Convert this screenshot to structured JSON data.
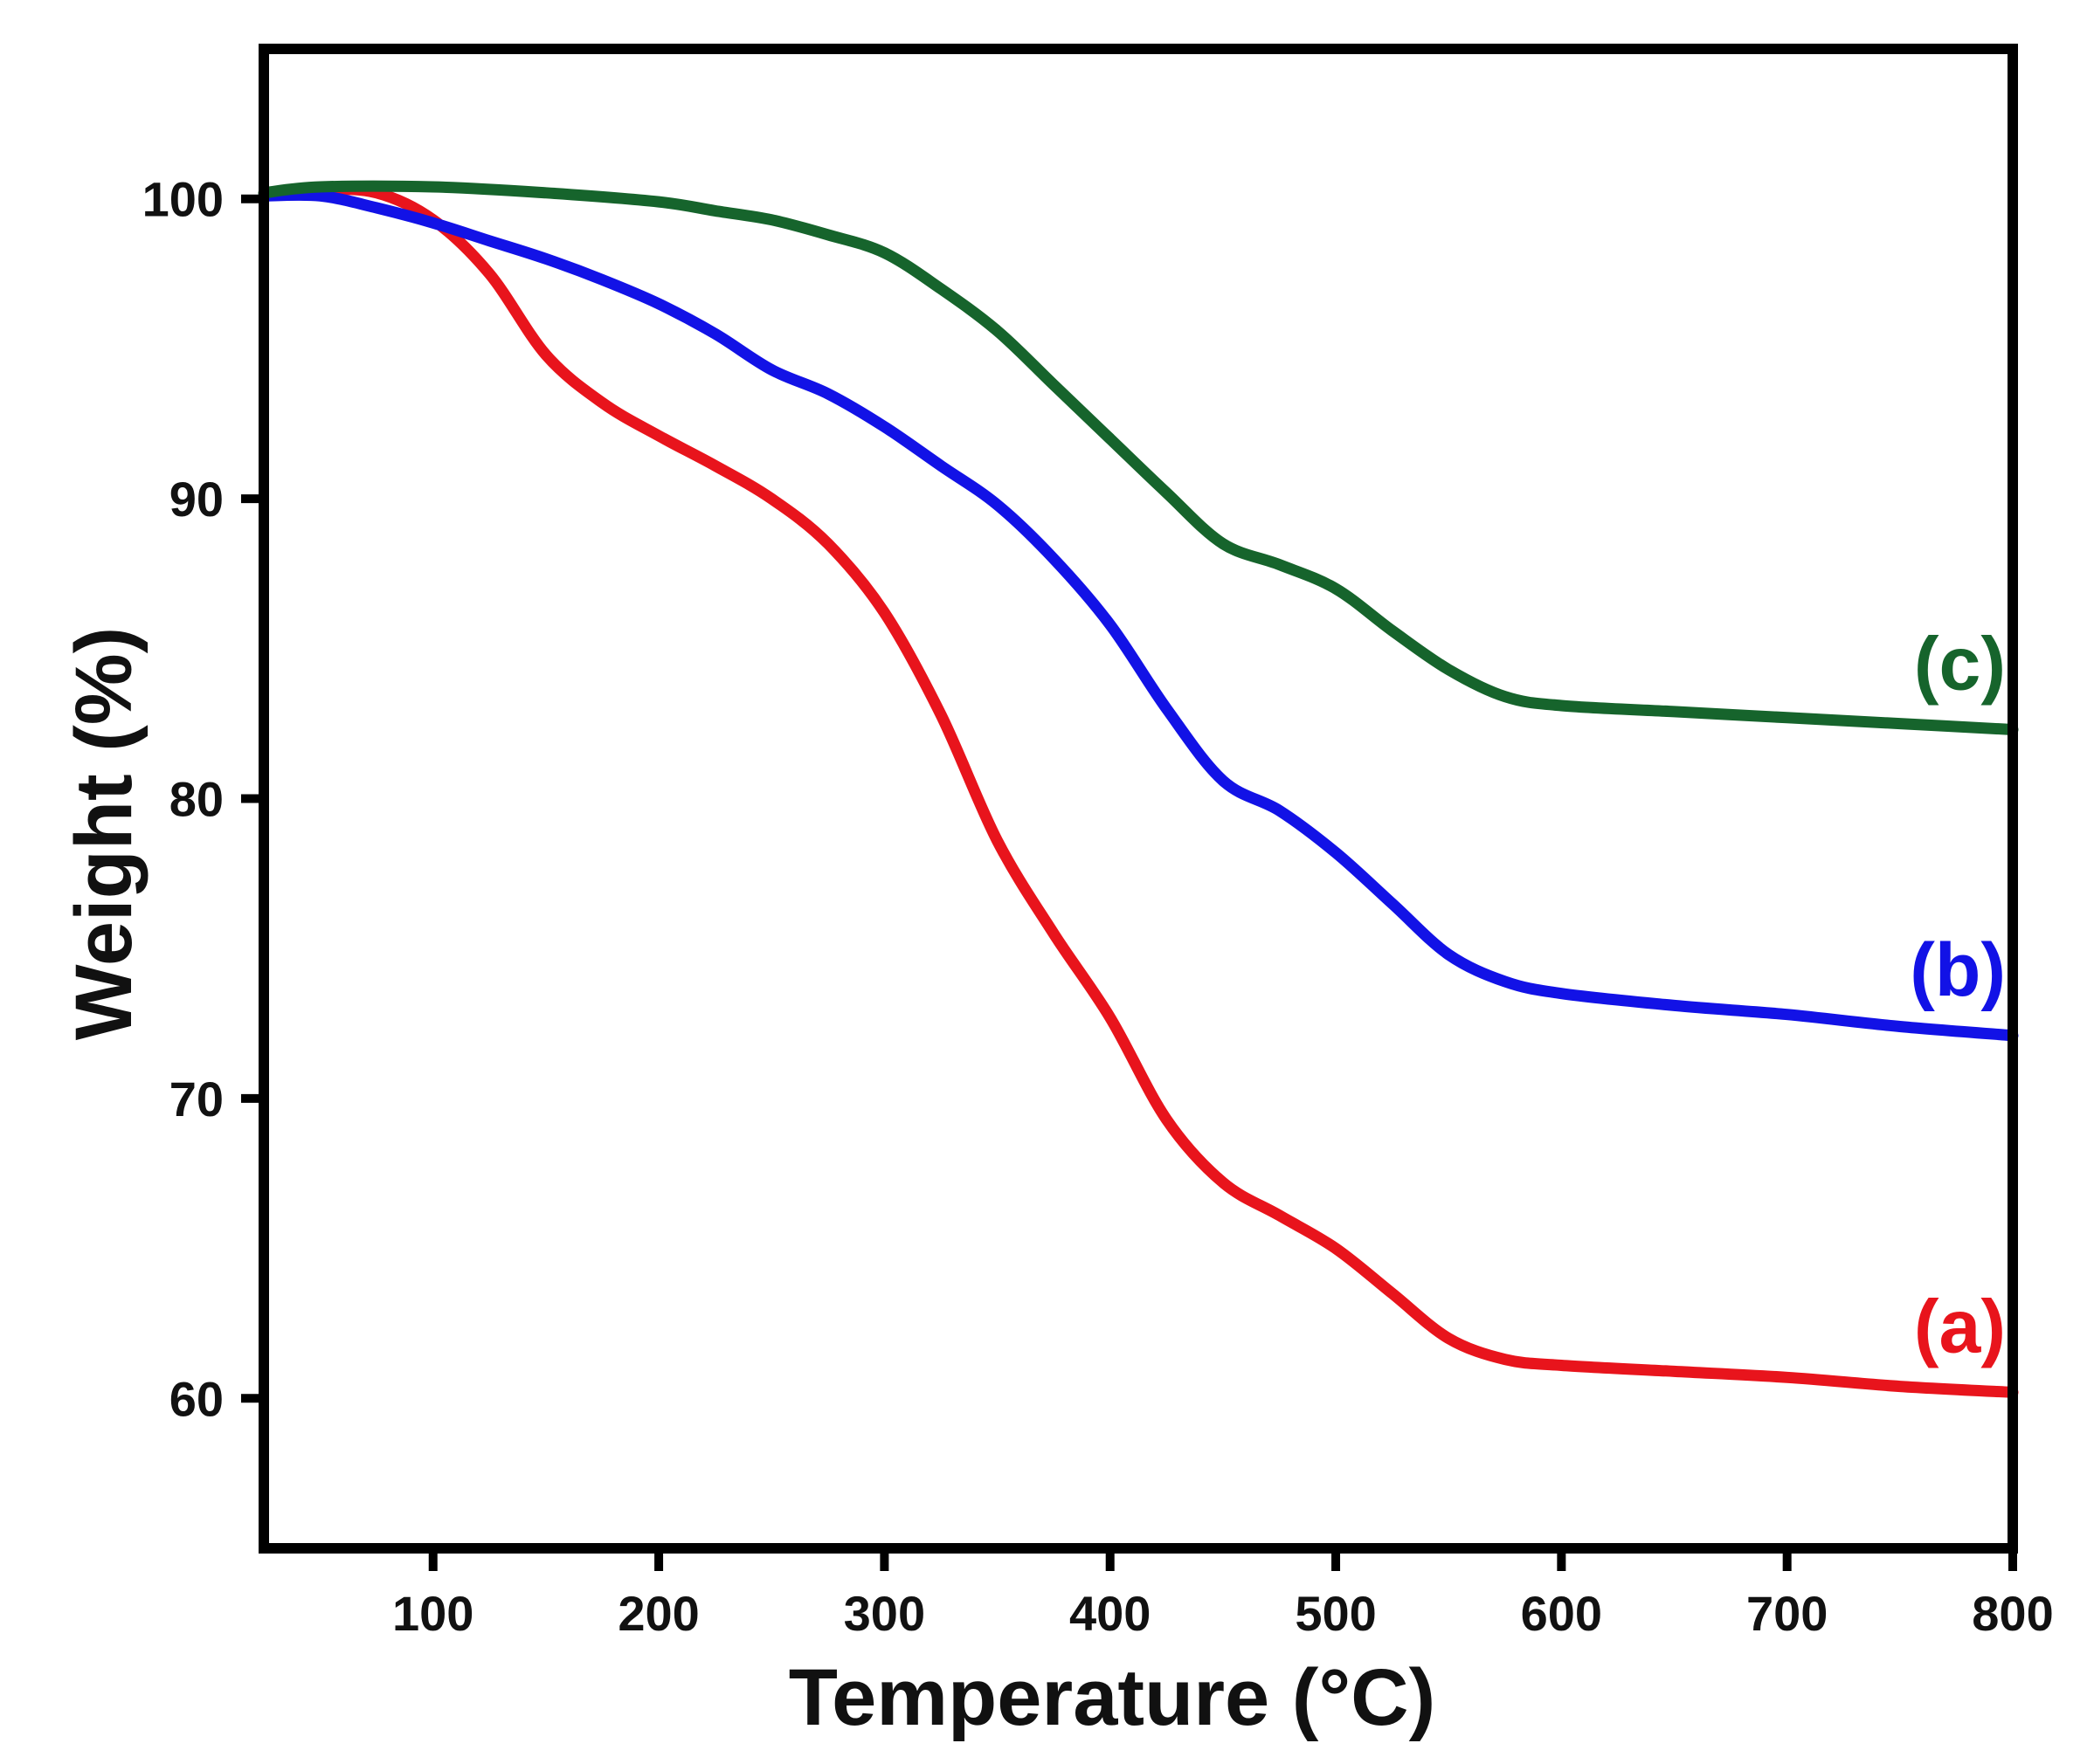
{
  "chart_data": {
    "type": "line",
    "title": "",
    "xlabel": "Temperature (°C)",
    "ylabel": "Weight (%)",
    "xlim": [
      25,
      800
    ],
    "ylim": [
      55,
      105
    ],
    "xticks": [
      100,
      200,
      300,
      400,
      500,
      600,
      700,
      800
    ],
    "yticks": [
      60,
      70,
      80,
      90,
      100
    ],
    "xtick_labels": [
      "100",
      "200",
      "300",
      "400",
      "500",
      "600",
      "700",
      "800"
    ],
    "ytick_labels": [
      "60",
      "70",
      "80",
      "90",
      "100"
    ],
    "grid": false,
    "legend": "inline labels at right end of each curve",
    "series": [
      {
        "name": "(a)",
        "color": "#e8141c",
        "points": [
          [
            25,
            100.1
          ],
          [
            50,
            100.3
          ],
          [
            75,
            100.2
          ],
          [
            100,
            99.3
          ],
          [
            125,
            97.5
          ],
          [
            150,
            94.8
          ],
          [
            175,
            93.2
          ],
          [
            200,
            92.1
          ],
          [
            225,
            91.1
          ],
          [
            250,
            90.0
          ],
          [
            275,
            88.5
          ],
          [
            300,
            86.2
          ],
          [
            325,
            82.8
          ],
          [
            350,
            78.6
          ],
          [
            375,
            75.5
          ],
          [
            400,
            72.7
          ],
          [
            425,
            69.3
          ],
          [
            450,
            67.2
          ],
          [
            475,
            66.1
          ],
          [
            500,
            65.0
          ],
          [
            525,
            63.5
          ],
          [
            550,
            62.0
          ],
          [
            575,
            61.3
          ],
          [
            600,
            61.1
          ],
          [
            650,
            60.9
          ],
          [
            700,
            60.7
          ],
          [
            750,
            60.4
          ],
          [
            800,
            60.2
          ]
        ]
      },
      {
        "name": "(b)",
        "color": "#1212e6",
        "points": [
          [
            25,
            100.1
          ],
          [
            50,
            100.1
          ],
          [
            75,
            99.7
          ],
          [
            100,
            99.2
          ],
          [
            125,
            98.6
          ],
          [
            150,
            98.0
          ],
          [
            175,
            97.3
          ],
          [
            200,
            96.5
          ],
          [
            225,
            95.5
          ],
          [
            250,
            94.3
          ],
          [
            275,
            93.5
          ],
          [
            300,
            92.4
          ],
          [
            325,
            91.1
          ],
          [
            350,
            89.8
          ],
          [
            375,
            88.0
          ],
          [
            400,
            85.8
          ],
          [
            425,
            83.0
          ],
          [
            450,
            80.6
          ],
          [
            475,
            79.6
          ],
          [
            500,
            78.2
          ],
          [
            525,
            76.5
          ],
          [
            550,
            74.8
          ],
          [
            575,
            73.9
          ],
          [
            600,
            73.5
          ],
          [
            650,
            73.1
          ],
          [
            700,
            72.8
          ],
          [
            750,
            72.4
          ],
          [
            800,
            72.1
          ]
        ]
      },
      {
        "name": "(c)",
        "color": "#16642c",
        "points": [
          [
            25,
            100.2
          ],
          [
            50,
            100.4
          ],
          [
            100,
            100.4
          ],
          [
            150,
            100.2
          ],
          [
            200,
            99.9
          ],
          [
            225,
            99.6
          ],
          [
            250,
            99.3
          ],
          [
            275,
            98.8
          ],
          [
            300,
            98.2
          ],
          [
            325,
            97.0
          ],
          [
            350,
            95.6
          ],
          [
            375,
            93.8
          ],
          [
            400,
            92.0
          ],
          [
            425,
            90.2
          ],
          [
            450,
            88.5
          ],
          [
            475,
            87.8
          ],
          [
            500,
            87.0
          ],
          [
            525,
            85.6
          ],
          [
            550,
            84.3
          ],
          [
            575,
            83.4
          ],
          [
            600,
            83.1
          ],
          [
            650,
            82.9
          ],
          [
            700,
            82.7
          ],
          [
            750,
            82.5
          ],
          [
            800,
            82.3
          ]
        ]
      }
    ]
  }
}
